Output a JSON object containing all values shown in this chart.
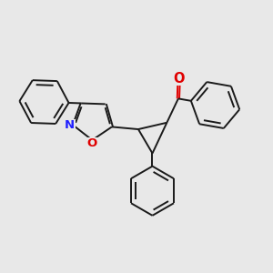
{
  "bg_color": "#e8e8e8",
  "bond_color": "#1a1a1a",
  "N_color": "#2020ff",
  "O_color": "#e00000",
  "lw": 1.4,
  "dpi": 100,
  "figsize": [
    3.0,
    3.0
  ],
  "xlim": [
    -0.5,
    8.5
  ],
  "ylim": [
    -0.5,
    8.5
  ],
  "hex_r": 0.85,
  "iso_r": 0.62,
  "cp_scale": 1.1
}
